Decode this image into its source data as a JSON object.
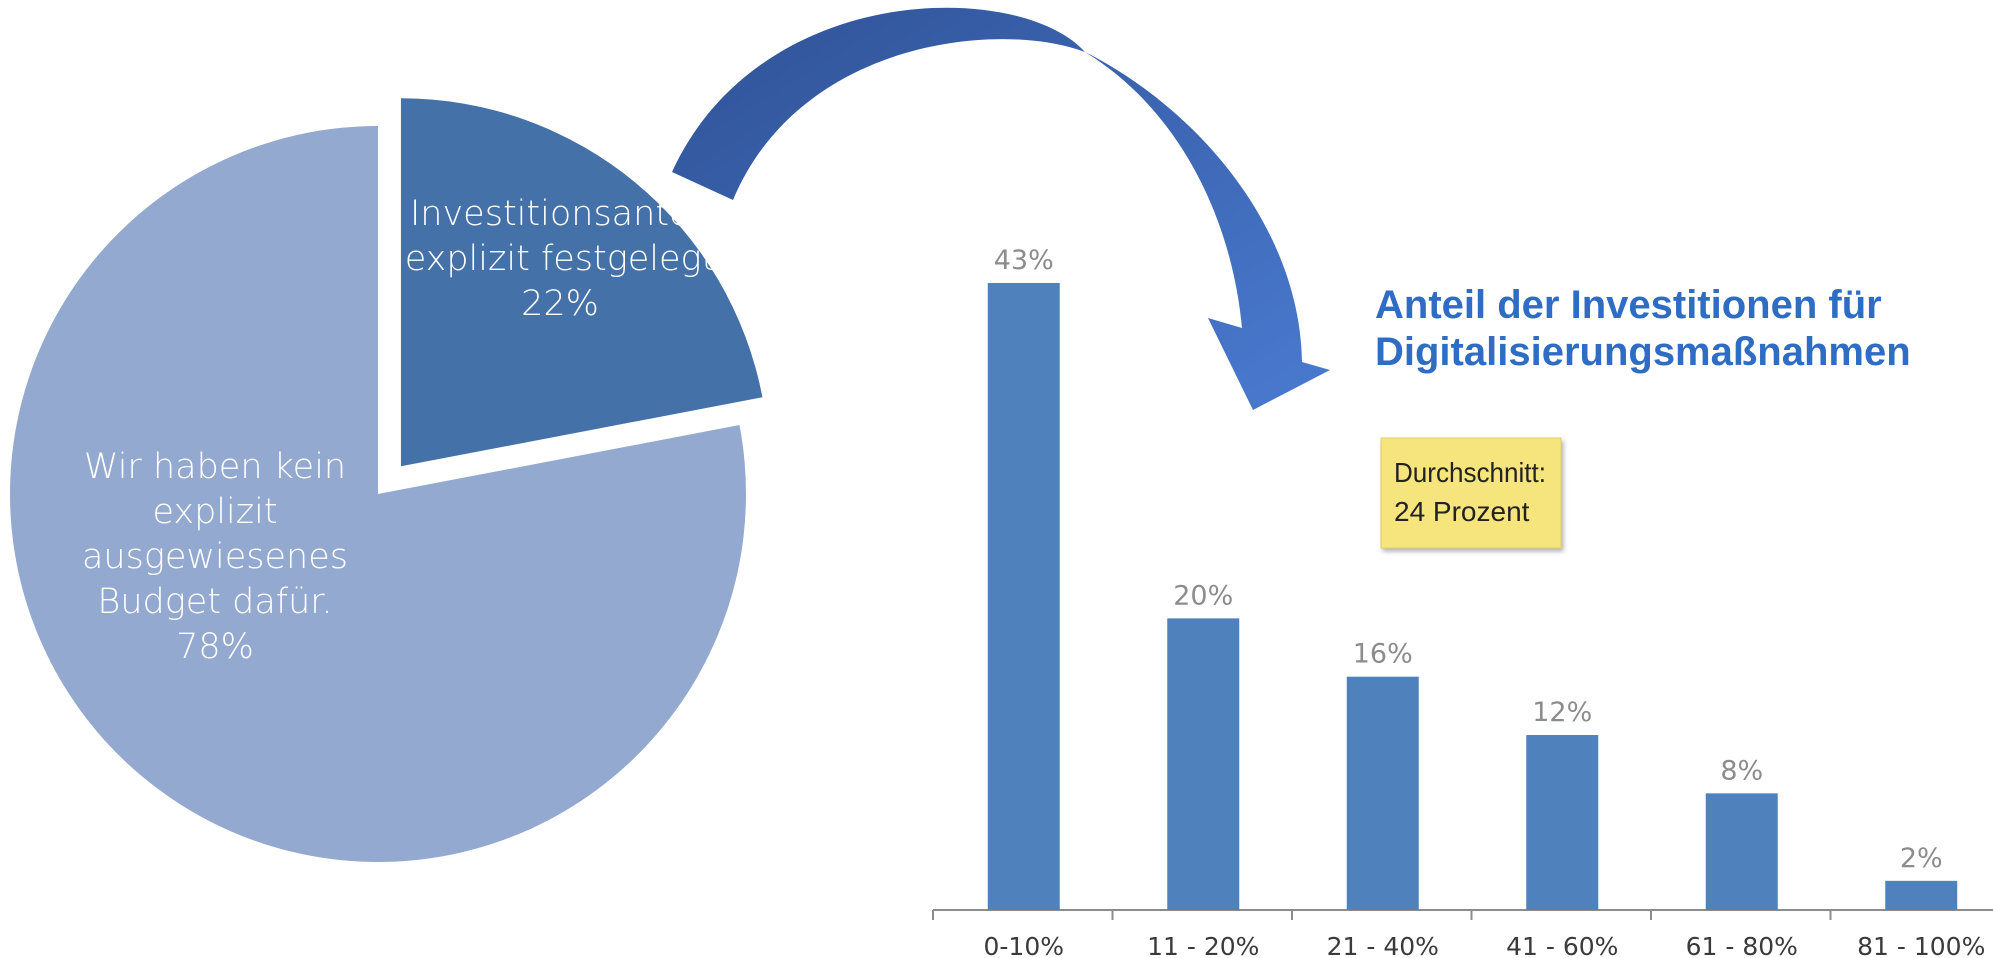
{
  "chart_data": [
    {
      "type": "pie",
      "slices": [
        {
          "label_lines": [
            "Investitionsanteil",
            "explizit festgelegt",
            "22%"
          ],
          "value": 22,
          "color": "#4471a8",
          "exploded": true
        },
        {
          "label_lines": [
            "Wir haben kein",
            "explizit",
            "ausgewiesenes",
            "Budget dafür.",
            "78%"
          ],
          "value": 78,
          "color": "#94a9d0",
          "exploded": false
        }
      ]
    },
    {
      "type": "bar",
      "title_lines": [
        "Anteil der Investitionen für",
        "Digitalisierungsmaßnahmen"
      ],
      "categories": [
        "0-10%",
        "11 - 20%",
        "21 - 40%",
        "41 - 60%",
        "61 - 80%",
        "81 - 100%"
      ],
      "values": [
        43,
        20,
        16,
        12,
        8,
        2
      ],
      "value_labels": [
        "43%",
        "20%",
        "16%",
        "12%",
        "8%",
        "2%"
      ],
      "ylim": [
        0,
        43
      ],
      "bar_color": "#4f81bd",
      "grid": false
    }
  ],
  "note": {
    "lines": [
      "Durchschnitt:",
      "24 Prozent"
    ],
    "color": "#f6e47c"
  },
  "arrow_colors": [
    "#2f5296",
    "#4a7ad0"
  ]
}
